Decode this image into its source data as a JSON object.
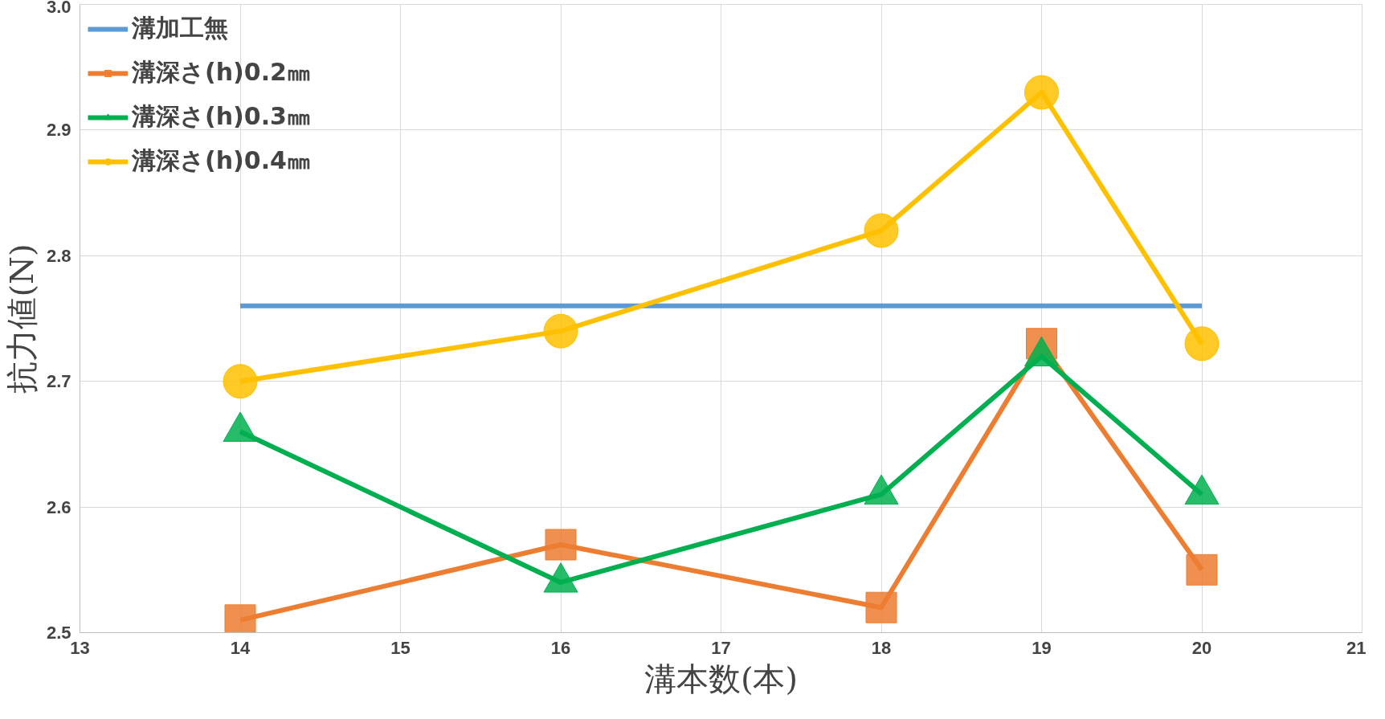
{
  "chart_data": {
    "type": "line",
    "xlabel": "溝本数(本)",
    "ylabel": "抗力値(N)",
    "xlim": [
      13,
      21
    ],
    "xticks": [
      13,
      14,
      15,
      16,
      17,
      18,
      19,
      20,
      21
    ],
    "ylim": [
      2.5,
      3.0
    ],
    "yticks": [
      {
        "value": 2.5,
        "label": "2.5"
      },
      {
        "value": 2.6,
        "label": "2.6"
      },
      {
        "value": 2.7,
        "label": "2.7"
      },
      {
        "value": 2.8,
        "label": "2.8"
      },
      {
        "value": 2.9,
        "label": "2.9"
      },
      {
        "value": 3.0,
        "label": "3.0"
      }
    ],
    "grid": true,
    "legend": "top left",
    "line_style": "solid",
    "series": [
      {
        "name": "溝加工無",
        "color": "#5b9bd5",
        "marker": "none",
        "x": [
          14,
          20
        ],
        "values": [
          2.76,
          2.76
        ]
      },
      {
        "name": "溝深さ(h)0.2㎜",
        "color": "#ed7d31",
        "marker": "square",
        "x": [
          14,
          16,
          18,
          19,
          20
        ],
        "values": [
          2.51,
          2.57,
          2.52,
          2.73,
          2.55
        ]
      },
      {
        "name": "溝深さ(h)0.3㎜",
        "color": "#00b050",
        "marker": "triangle",
        "x": [
          14,
          16,
          18,
          19,
          20
        ],
        "values": [
          2.66,
          2.54,
          2.61,
          2.72,
          2.61
        ]
      },
      {
        "name": "溝深さ(h)0.4㎜",
        "color": "#ffc000",
        "marker": "circle",
        "x": [
          14,
          16,
          18,
          19,
          20
        ],
        "values": [
          2.7,
          2.74,
          2.82,
          2.93,
          2.73
        ]
      }
    ]
  }
}
